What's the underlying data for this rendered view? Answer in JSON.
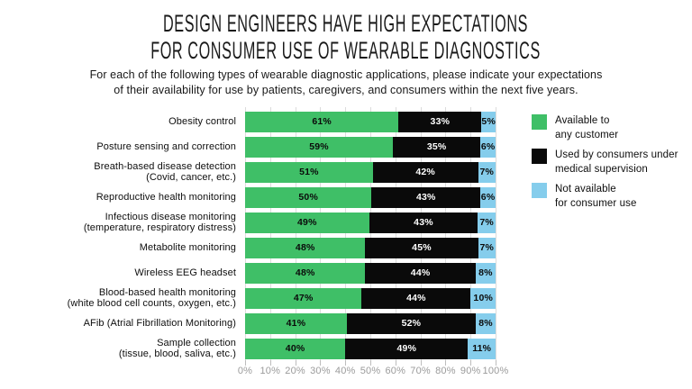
{
  "header": {
    "title_line1": "DESIGN ENGINEERS HAVE HIGH EXPECTATIONS",
    "title_line2": "FOR CONSUMER USE OF WEARABLE DIAGNOSTICS",
    "subtitle_line1": "For each of the following types of wearable diagnostic applications, please indicate your expectations",
    "subtitle_line2": "of their availability for use by patients, caregivers, and consumers within the next five years."
  },
  "chart_data": {
    "type": "bar",
    "stacked": true,
    "orientation": "horizontal",
    "grid": true,
    "legend_position": "right",
    "xlim": [
      0,
      100
    ],
    "value_suffix": "%",
    "x_ticks": [
      "0%",
      "10%",
      "20%",
      "30%",
      "40%",
      "50%",
      "60%",
      "70%",
      "80%",
      "90%",
      "100%"
    ],
    "categories": [
      {
        "label": "Obesity control",
        "sublabel": ""
      },
      {
        "label": "Posture sensing and correction",
        "sublabel": ""
      },
      {
        "label": "Breath-based disease detection",
        "sublabel": "(Covid, cancer, etc.)"
      },
      {
        "label": "Reproductive health monitoring",
        "sublabel": ""
      },
      {
        "label": "Infectious disease monitoring",
        "sublabel": "(temperature, respiratory distress)"
      },
      {
        "label": "Metabolite monitoring",
        "sublabel": ""
      },
      {
        "label": "Wireless EEG headset",
        "sublabel": ""
      },
      {
        "label": "Blood-based health monitoring",
        "sublabel": "(white blood cell counts, oxygen, etc.)"
      },
      {
        "label": "AFib (Atrial Fibrillation Monitoring)",
        "sublabel": ""
      },
      {
        "label": "Sample collection",
        "sublabel": "(tissue, blood, saliva, etc.)"
      }
    ],
    "series": [
      {
        "key": "available-any-customer",
        "name": "Available to any customer",
        "color": "#3fbf67",
        "label_color": "#0a0a0a",
        "values": [
          61,
          59,
          51,
          50,
          49,
          48,
          48,
          47,
          41,
          40
        ]
      },
      {
        "key": "medical-supervision",
        "name": "Used by consumers under medical supervision",
        "color": "#0a0a0a",
        "label_color": "#ffffff",
        "values": [
          33,
          35,
          42,
          43,
          43,
          45,
          44,
          44,
          52,
          49
        ]
      },
      {
        "key": "not-available",
        "name": "Not available for consumer use",
        "color": "#85cdec",
        "label_color": "#0a0a0a",
        "values": [
          5,
          6,
          7,
          6,
          7,
          7,
          8,
          10,
          8,
          11
        ]
      }
    ],
    "legend": [
      {
        "key": "available-any-customer",
        "color": "#3fbf67",
        "line1": "Available to",
        "line2": "any customer"
      },
      {
        "key": "medical-supervision",
        "color": "#0a0a0a",
        "line1": "Used by consumers under",
        "line2": "medical supervision"
      },
      {
        "key": "not-available",
        "color": "#85cdec",
        "line1": "Not available",
        "line2": "for consumer use"
      }
    ]
  }
}
